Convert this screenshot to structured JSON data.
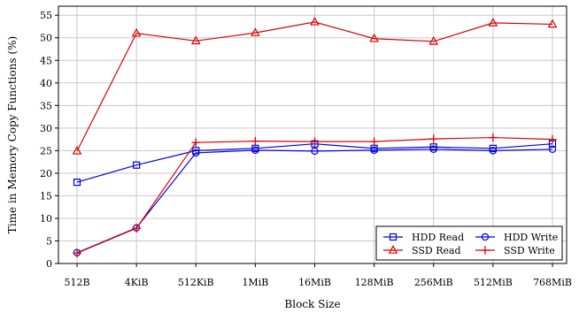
{
  "chart_data": {
    "type": "line",
    "xlabel": "Block Size",
    "ylabel": "Time in Memory Copy Functions (%)",
    "categories": [
      "512B",
      "4KiB",
      "512KiB",
      "1MiB",
      "16MiB",
      "128MiB",
      "256MiB",
      "512MiB",
      "768MiB"
    ],
    "ylim": [
      0,
      57
    ],
    "yticks": [
      0,
      5,
      10,
      15,
      20,
      25,
      30,
      35,
      40,
      45,
      50,
      55
    ],
    "grid": true,
    "legend_position": "bottom-right",
    "series": [
      {
        "name": "HDD Read",
        "color": "#0000dd",
        "marker": "square",
        "values": [
          18.0,
          21.8,
          25.0,
          25.5,
          26.5,
          25.5,
          25.8,
          25.5,
          26.5
        ]
      },
      {
        "name": "HDD Write",
        "color": "#0000dd",
        "marker": "circle",
        "values": [
          2.4,
          7.9,
          24.5,
          25.1,
          24.9,
          25.1,
          25.3,
          25.0,
          25.3
        ]
      },
      {
        "name": "SSD Read",
        "color": "#dd0000",
        "marker": "triangle",
        "values": [
          24.9,
          51.0,
          49.3,
          51.1,
          53.5,
          49.8,
          49.2,
          53.3,
          53.0
        ]
      },
      {
        "name": "SSD Write",
        "color": "#dd0000",
        "marker": "plus",
        "values": [
          2.3,
          7.8,
          26.8,
          27.1,
          27.0,
          27.0,
          27.6,
          27.9,
          27.5
        ]
      }
    ]
  }
}
